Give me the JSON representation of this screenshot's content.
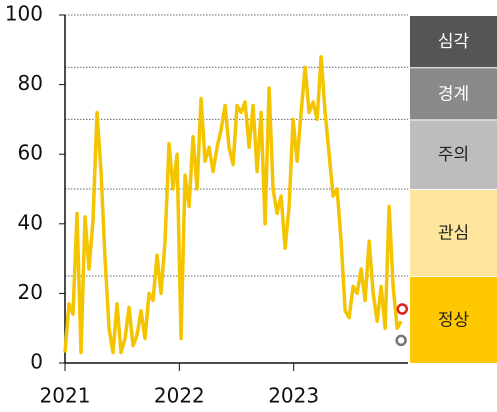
{
  "chart_data": {
    "type": "line",
    "xlim": [
      2021,
      2024
    ],
    "xticks": [
      2021,
      2022,
      2023
    ],
    "ylim": [
      0,
      100
    ],
    "yticks": [
      0,
      20,
      40,
      60,
      80,
      100
    ],
    "bands": [
      {
        "label": "심각",
        "from": 85,
        "to": 100,
        "color": "#555555",
        "text_color": "#ffffff"
      },
      {
        "label": "경계",
        "from": 70,
        "to": 85,
        "color": "#8a8a8a",
        "text_color": "#ffffff"
      },
      {
        "label": "주의",
        "from": 50,
        "to": 70,
        "color": "#bdbdbd",
        "text_color": "#222222"
      },
      {
        "label": "관심",
        "from": 25,
        "to": 50,
        "color": "#fde59c",
        "text_color": "#222222"
      },
      {
        "label": "정상",
        "from": 0,
        "to": 25,
        "color": "#ffc800",
        "text_color": "#222222"
      }
    ],
    "series": [
      {
        "color": "#f5c400",
        "x": [
          2021,
          2021.035,
          2021.07,
          2021.105,
          2021.14,
          2021.175,
          2021.21,
          2021.245,
          2021.28,
          2021.315,
          2021.35,
          2021.385,
          2021.42,
          2021.455,
          2021.49,
          2021.525,
          2021.56,
          2021.595,
          2021.63,
          2021.665,
          2021.7,
          2021.735,
          2021.77,
          2021.805,
          2021.84,
          2021.875,
          2021.91,
          2021.945,
          2021.98,
          2022.015,
          2022.05,
          2022.085,
          2022.12,
          2022.155,
          2022.19,
          2022.225,
          2022.26,
          2022.295,
          2022.33,
          2022.365,
          2022.4,
          2022.435,
          2022.47,
          2022.505,
          2022.54,
          2022.575,
          2022.61,
          2022.645,
          2022.68,
          2022.715,
          2022.75,
          2022.785,
          2022.82,
          2022.855,
          2022.89,
          2022.925,
          2022.96,
          2022.995,
          2023.03,
          2023.065,
          2023.1,
          2023.135,
          2023.17,
          2023.205,
          2023.24,
          2023.275,
          2023.31,
          2023.345,
          2023.38,
          2023.415,
          2023.45,
          2023.485,
          2023.52,
          2023.555,
          2023.59,
          2023.625,
          2023.66,
          2023.695,
          2023.73,
          2023.765,
          2023.8,
          2023.835,
          2023.87,
          2023.905,
          2023.94
        ],
        "values": [
          3,
          17,
          14,
          43,
          3,
          42,
          27,
          41,
          72,
          55,
          30,
          10,
          3,
          17,
          3,
          7,
          16,
          5,
          8,
          15,
          7,
          20,
          18,
          31,
          20,
          35,
          63,
          50,
          60,
          7,
          54,
          45,
          65,
          50,
          76,
          58,
          62,
          55,
          62,
          67,
          74,
          62,
          57,
          74,
          72,
          75,
          62,
          74,
          55,
          72,
          40,
          79,
          50,
          43,
          48,
          33,
          45,
          70,
          58,
          72,
          85,
          72,
          75,
          70,
          88,
          72,
          60,
          48,
          50,
          35,
          15,
          13,
          22,
          20,
          27,
          18,
          35,
          20,
          12,
          22,
          10,
          45,
          22,
          10,
          12
        ]
      }
    ],
    "points": [
      {
        "x": 2023.95,
        "value": 15.5,
        "color": "#e02020"
      },
      {
        "x": 2023.94,
        "value": 6.5,
        "color": "#777777"
      }
    ]
  }
}
